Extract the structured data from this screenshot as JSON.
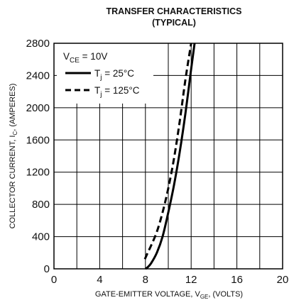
{
  "chart_data": {
    "type": "line",
    "title": "TRANSFER CHARACTERISTICS",
    "subtitle": "(TYPICAL)",
    "xlabel": {
      "main": "GATE-EMITTER VOLTAGE, V",
      "sub": "GE",
      "suffix": ", (VOLTS)"
    },
    "ylabel": {
      "main": "COLLECTOR CURRENT, I",
      "sub": "C",
      "suffix": ", (AMPERES)"
    },
    "xlim": [
      0,
      20
    ],
    "ylim": [
      0,
      2800
    ],
    "xticks": [
      0,
      4,
      8,
      12,
      16,
      20
    ],
    "yticks": [
      0,
      400,
      800,
      1200,
      1600,
      2000,
      2400,
      2800
    ],
    "grid": true,
    "legend_position": "top-left",
    "condition": {
      "main": "V",
      "sub": "CE",
      "suffix": " = 10V"
    },
    "series": [
      {
        "name": {
          "main": "T",
          "sub": "j",
          "suffix": " = 25°C"
        },
        "style": "solid",
        "x": [
          8.0,
          8.2,
          8.5,
          9.0,
          9.5,
          10.0,
          10.5,
          11.0,
          11.5,
          12.0,
          12.3
        ],
        "y": [
          0,
          20,
          70,
          200,
          400,
          700,
          1040,
          1450,
          1930,
          2480,
          2800
        ]
      },
      {
        "name": {
          "main": "T",
          "sub": "j",
          "suffix": " = 125°C"
        },
        "style": "dashed",
        "x": [
          7.95,
          8.2,
          8.5,
          9.0,
          9.5,
          10.0,
          10.5,
          11.0,
          11.5,
          12.0
        ],
        "y": [
          120,
          200,
          290,
          460,
          700,
          1000,
          1370,
          1830,
          2350,
          2800
        ]
      }
    ]
  }
}
